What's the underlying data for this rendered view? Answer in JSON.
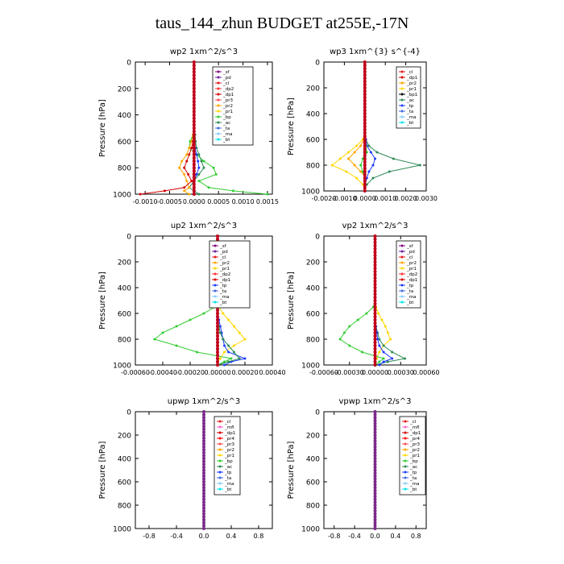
{
  "title": "taus_144_zhun  BUDGET at255E,-17N",
  "colors": {
    "sf": "#800080",
    "pd": "#6a1b9a",
    "cl": "#e31a1c",
    "dp2": "#ff3030",
    "dp1": "#d40000",
    "pr3": "#ff4d4d",
    "pr2": "#ffa500",
    "pr1": "#ffd700",
    "bp": "#32cd32",
    "ac": "#2e8b57",
    "tp": "#1e3cff",
    "ta": "#4169e1",
    "ma": "#87cefa",
    "bt": "#00e5ee",
    "mfl": "#ff66cc",
    "pr4": "#ff0000"
  },
  "chart_data": [
    {
      "type": "line",
      "title": "wp2   1xm^2/s^3",
      "ylabel": "Pressure [hPa]",
      "ylim": [
        1000,
        0
      ],
      "xlim": [
        -0.0012,
        0.0016
      ],
      "xticks": [
        -0.001,
        -0.0005,
        0,
        0.0005,
        0.001,
        0.0015
      ],
      "xtick_labels": [
        "-0.0010",
        "-0.0005",
        "0.0000",
        "0.0005",
        "0.0010",
        "0.0015"
      ],
      "yticks": [
        0,
        200,
        400,
        600,
        800,
        1000
      ],
      "legend": [
        "_sf",
        "_pd",
        "_cl",
        "_dp2",
        "_dp1",
        "_pr3",
        "_pr2",
        "_pr1",
        "_bp",
        "_ac",
        "_ta",
        "_ma",
        "_bt"
      ],
      "pressure": [
        0,
        100,
        200,
        300,
        400,
        500,
        550,
        600,
        650,
        700,
        750,
        800,
        850,
        900,
        950,
        975,
        1000
      ],
      "series": [
        {
          "name": "_bp",
          "color": "#32cd32",
          "values": [
            0,
            0,
            0,
            0,
            0,
            0,
            -2e-05,
            -8e-05,
            -0.0001,
            5e-05,
            0.0002,
            0.0004,
            0.00045,
            0.0001,
            0.0003,
            0.0008,
            0.0015
          ]
        },
        {
          "name": "_ac",
          "color": "#2e8b57",
          "values": [
            0,
            0,
            0,
            0,
            0,
            0,
            2e-05,
            3e-05,
            5e-05,
            0.0001,
            0.00015,
            0.0002,
            0.0001,
            0,
            -0.0001,
            0,
            0.0001
          ]
        },
        {
          "name": "_pr2",
          "color": "#ffa500",
          "values": [
            0,
            0,
            0,
            0,
            0,
            0,
            -2e-05,
            -5e-05,
            -0.0001,
            -0.00015,
            -0.00025,
            -0.0003,
            -0.0002,
            -0.00015,
            -0.0001,
            -0.0002,
            -0.0001
          ]
        },
        {
          "name": "_dp1",
          "color": "#d40000",
          "values": [
            0,
            0,
            0,
            0,
            0,
            0,
            0,
            -2e-05,
            -5e-05,
            -0.0001,
            -0.00015,
            -0.0002,
            -0.00012,
            -5e-05,
            -0.0002,
            -0.0006,
            -0.0011
          ]
        },
        {
          "name": "_ta",
          "color": "#1e3cff",
          "values": [
            0,
            0,
            0,
            0,
            0,
            0,
            0,
            0,
            2e-05,
            5e-05,
            8e-05,
            0.0001,
            5e-05,
            0,
            0,
            0,
            0
          ]
        },
        {
          "name": "_sf",
          "color": "#800080",
          "values": [
            0,
            0,
            0,
            0,
            0,
            0,
            0,
            0,
            0,
            0,
            0,
            0,
            0,
            0,
            0,
            0,
            0
          ]
        },
        {
          "name": "_cl",
          "color": "#e31a1c",
          "values": [
            0,
            0,
            0,
            0,
            0,
            0,
            0,
            0,
            0,
            0,
            0,
            0,
            0,
            0,
            0,
            0,
            0
          ]
        }
      ]
    },
    {
      "type": "line",
      "title": "wp3   1xm^{3} s^{-4}",
      "ylabel": "Pressure [hPa]",
      "ylim": [
        1000,
        0
      ],
      "xlim": [
        -0.002,
        0.003
      ],
      "xticks": [
        -0.002,
        -0.001,
        0,
        0.001,
        0.002,
        0.003
      ],
      "xtick_labels": [
        "-0.0020",
        "-0.0010",
        "0.0000",
        "0.0010",
        "0.0020",
        "0.0030"
      ],
      "yticks": [
        0,
        200,
        400,
        600,
        800,
        1000
      ],
      "legend": [
        "_cl",
        "_dp1",
        "_pr2",
        "_pr1",
        "_bp1",
        "_ac",
        "_tp",
        "_ta",
        "_ma",
        "_bt"
      ],
      "pressure": [
        0,
        100,
        200,
        300,
        400,
        500,
        550,
        600,
        650,
        700,
        750,
        800,
        850,
        900,
        950,
        975,
        1000
      ],
      "series": [
        {
          "name": "_ac",
          "color": "#2e8b57",
          "values": [
            0,
            0,
            0,
            0,
            0,
            0,
            0,
            5e-05,
            0.0002,
            0.0006,
            0.0014,
            0.0027,
            0.0012,
            0.0004,
            0.0001,
            0,
            0
          ]
        },
        {
          "name": "_pr1",
          "color": "#ffd700",
          "values": [
            0,
            0,
            0,
            0,
            0,
            0,
            0,
            -0.0001,
            -0.0004,
            -0.0008,
            -0.0012,
            -0.0016,
            -0.0009,
            -0.0004,
            -0.0001,
            0,
            0
          ]
        },
        {
          "name": "_pr2",
          "color": "#ffa500",
          "values": [
            0,
            0,
            0,
            0,
            0,
            0,
            0,
            -5e-05,
            -0.0002,
            -0.0005,
            -0.0008,
            -0.0005,
            -0.0002,
            0.0001,
            0,
            0,
            0
          ]
        },
        {
          "name": "_tp",
          "color": "#1e3cff",
          "values": [
            0,
            0,
            0,
            0,
            0,
            0,
            0,
            5e-05,
            0.0001,
            0.0003,
            0.0005,
            0.0004,
            0.0002,
            0.0001,
            0,
            0,
            0
          ]
        },
        {
          "name": "_bp1",
          "color": "#32cd32",
          "values": [
            0,
            0,
            0,
            0,
            0,
            0,
            0,
            0,
            5e-05,
            0.0001,
            -0.0001,
            -0.0002,
            -0.0001,
            0,
            0,
            0,
            0
          ]
        },
        {
          "name": "_cl",
          "color": "#e31a1c",
          "values": [
            0,
            0,
            0,
            0,
            0,
            0,
            0,
            0,
            0,
            0,
            0,
            0,
            0,
            0,
            0,
            0,
            0
          ]
        }
      ]
    },
    {
      "type": "line",
      "title": "up2   1xm^2/s^3",
      "ylabel": "Pressure [hPa]",
      "ylim": [
        1000,
        0
      ],
      "xlim": [
        -0.0006,
        0.0004
      ],
      "xticks": [
        -0.0006,
        -0.0004,
        -0.0002,
        0,
        0.0002,
        0.0004
      ],
      "xtick_labels": [
        "-0.00060",
        "-0.00040",
        "-0.00020",
        "0.00000",
        "0.00020",
        "0.00040"
      ],
      "yticks": [
        0,
        200,
        400,
        600,
        800,
        1000
      ],
      "legend": [
        "_sf",
        "_pd",
        "_cl",
        "_pr2",
        "_pr1",
        "_dp2",
        "_dp1",
        "_tp",
        "_ta",
        "_ma",
        "_bt"
      ],
      "pressure": [
        0,
        100,
        200,
        300,
        400,
        500,
        550,
        600,
        650,
        700,
        750,
        800,
        850,
        900,
        950,
        975,
        1000
      ],
      "series": [
        {
          "name": "_pr1",
          "color": "#ffd700",
          "values": [
            0,
            0,
            0,
            0,
            0,
            0,
            1e-05,
            4e-05,
            8e-05,
            0.00012,
            0.00016,
            0.0002,
            0.00012,
            5e-05,
            2e-05,
            0,
            0
          ]
        },
        {
          "name": "_dp1",
          "color": "#32cd32",
          "values": [
            0,
            0,
            0,
            0,
            0,
            0,
            -2e-05,
            -0.0001,
            -0.0002,
            -0.0003,
            -0.0004,
            -0.00046,
            -0.0003,
            -0.00015,
            0.0001,
            5e-05,
            0
          ]
        },
        {
          "name": "_tp",
          "color": "#1e3cff",
          "values": [
            0,
            0,
            0,
            0,
            0,
            0,
            0,
            0,
            1e-05,
            2e-05,
            3e-05,
            4e-05,
            5e-05,
            8e-05,
            0.0002,
            0.0001,
            5e-05
          ]
        },
        {
          "name": "_ac",
          "color": "#2e8b57",
          "values": [
            0,
            0,
            0,
            0,
            0,
            0,
            0,
            0,
            0,
            1e-05,
            2e-05,
            4e-05,
            8e-05,
            0.00012,
            0.00016,
            8e-05,
            0
          ]
        },
        {
          "name": "_cl",
          "color": "#e31a1c",
          "values": [
            0,
            0,
            0,
            0,
            0,
            0,
            0,
            0,
            0,
            0,
            0,
            0,
            0,
            0,
            0,
            0,
            0
          ]
        }
      ]
    },
    {
      "type": "line",
      "title": "vp2   1xm^2/s^3",
      "ylabel": "Pressure [hPa]",
      "ylim": [
        1000,
        0
      ],
      "xlim": [
        -0.0006,
        0.0006
      ],
      "xticks": [
        -0.0006,
        -0.0003,
        0,
        0.0003,
        0.0006
      ],
      "xtick_labels": [
        "-0.00060",
        "-0.00030",
        "0.00000",
        "0.00030",
        "0.00060"
      ],
      "yticks": [
        0,
        200,
        400,
        600,
        800,
        1000
      ],
      "legend": [
        "_sf",
        "_pd",
        "_cl",
        "_pr2",
        "_pr1",
        "_dp2",
        "_dp1",
        "_tp",
        "_ta",
        "_ma",
        "_bt"
      ],
      "pressure": [
        0,
        100,
        200,
        300,
        400,
        500,
        550,
        600,
        650,
        700,
        750,
        800,
        850,
        900,
        950,
        975,
        1000
      ],
      "series": [
        {
          "name": "_pr1",
          "color": "#ffd700",
          "values": [
            0,
            0,
            0,
            0,
            0,
            0,
            1e-05,
            4e-05,
            8e-05,
            0.00012,
            0.00015,
            0.00018,
            0.0001,
            5e-05,
            2e-05,
            0,
            0
          ]
        },
        {
          "name": "_dp1",
          "color": "#32cd32",
          "values": [
            0,
            0,
            0,
            0,
            0,
            0,
            -2e-05,
            -0.0001,
            -0.0002,
            -0.0003,
            -0.00036,
            -0.00041,
            -0.0003,
            -0.00015,
            0.0001,
            5e-05,
            0
          ]
        },
        {
          "name": "_ac",
          "color": "#2e8b57",
          "values": [
            0,
            0,
            0,
            0,
            0,
            0,
            0,
            0,
            0,
            1e-05,
            3e-05,
            5e-05,
            0.0001,
            0.0002,
            0.00035,
            0.00015,
            0
          ]
        },
        {
          "name": "_tp",
          "color": "#1e3cff",
          "values": [
            0,
            0,
            0,
            0,
            0,
            0,
            0,
            0,
            0,
            1e-05,
            2e-05,
            3e-05,
            5e-05,
            0.0001,
            0.0002,
            0.0001,
            5e-05
          ]
        },
        {
          "name": "_cl",
          "color": "#e31a1c",
          "values": [
            0,
            0,
            0,
            0,
            0,
            0,
            0,
            0,
            0,
            0,
            0,
            0,
            0,
            0,
            0,
            0,
            0
          ]
        }
      ]
    },
    {
      "type": "line",
      "title": "upwp   1xm^2/s^3",
      "ylabel": "Pressure [hPa]",
      "ylim": [
        1000,
        0
      ],
      "xlim": [
        -1,
        1
      ],
      "xticks": [
        -0.8,
        -0.4,
        0,
        0.4,
        0.8
      ],
      "xtick_labels": [
        "-0.8",
        "-0.4",
        "0.0",
        "0.4",
        "0.8"
      ],
      "yticks": [
        0,
        200,
        400,
        600,
        800,
        1000
      ],
      "legend": [
        "_cl",
        "_mfl",
        "_dp1",
        "_pr4",
        "_pr3",
        "_pr2",
        "_pr1",
        "_bp",
        "_ac",
        "_tp",
        "_ta",
        "_ma",
        "_bt"
      ],
      "pressure": [
        0,
        100,
        200,
        300,
        400,
        500,
        550,
        600,
        650,
        700,
        750,
        800,
        850,
        900,
        950,
        975,
        1000
      ],
      "series": [
        {
          "name": "_cl",
          "color": "#800080",
          "values": [
            0,
            0,
            0,
            0,
            0,
            0,
            0,
            0,
            0,
            0,
            0,
            0,
            0,
            0,
            0,
            0,
            0
          ]
        },
        {
          "name": "_pr4",
          "color": "#e31a1c",
          "values": [
            0,
            0,
            0,
            0,
            0,
            0,
            0,
            0,
            0,
            0,
            0,
            0,
            0,
            0,
            0,
            0,
            0
          ]
        }
      ]
    },
    {
      "type": "line",
      "title": "vpwp   1xm^2/s^3",
      "ylabel": "Pressure [hPa]",
      "ylim": [
        1000,
        0
      ],
      "xlim": [
        -1,
        1
      ],
      "xticks": [
        -0.8,
        -0.4,
        0,
        0.4,
        0.8
      ],
      "xtick_labels": [
        "-0.8",
        "-0.4",
        "0.0",
        "0.4",
        "0.8"
      ],
      "yticks": [
        0,
        200,
        400,
        600,
        800,
        1000
      ],
      "legend": [
        "_cl",
        "_mfl",
        "_dp1",
        "_pr4",
        "_pr3",
        "_pr2",
        "_pr1",
        "_bp",
        "_ac",
        "_tp",
        "_ta",
        "_ma",
        "_bt"
      ],
      "pressure": [
        0,
        100,
        200,
        300,
        400,
        500,
        550,
        600,
        650,
        700,
        750,
        800,
        850,
        900,
        950,
        975,
        1000
      ],
      "series": [
        {
          "name": "_cl",
          "color": "#800080",
          "values": [
            0,
            0,
            0,
            0,
            0,
            0,
            0,
            0,
            0,
            0,
            0,
            0,
            0,
            0,
            0,
            0,
            0
          ]
        },
        {
          "name": "_pr4",
          "color": "#e31a1c",
          "values": [
            0,
            0,
            0,
            0,
            0,
            0,
            0,
            0,
            0,
            0,
            0,
            0,
            0,
            0,
            0,
            0,
            0
          ]
        }
      ]
    }
  ]
}
